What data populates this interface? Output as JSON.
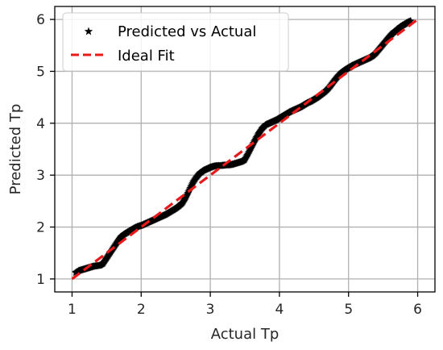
{
  "chart_data": {
    "type": "scatter",
    "xlabel": "Actual Tp",
    "ylabel": "Predicted Tp",
    "xlim": [
      0.75,
      6.25
    ],
    "ylim": [
      0.75,
      6.25
    ],
    "x_ticks": [
      1,
      2,
      3,
      4,
      5,
      6
    ],
    "y_ticks": [
      1,
      2,
      3,
      4,
      5,
      6
    ],
    "x_tick_labels": [
      "1",
      "2",
      "3",
      "4",
      "5",
      "6"
    ],
    "y_tick_labels": [
      "1",
      "2",
      "3",
      "4",
      "5",
      "6"
    ],
    "grid": true,
    "legend_position": "top-left",
    "series": [
      {
        "name": "Predicted vs Actual",
        "kind": "scatter",
        "marker": "star",
        "color": "#000000",
        "x": [
          1.05,
          1.1,
          1.15,
          1.2,
          1.25,
          1.3,
          1.35,
          1.4,
          1.45,
          1.5,
          1.55,
          1.6,
          1.65,
          1.7,
          1.75,
          1.8,
          1.85,
          1.9,
          1.95,
          2.0,
          2.05,
          2.1,
          2.15,
          2.2,
          2.25,
          2.3,
          2.35,
          2.4,
          2.45,
          2.5,
          2.55,
          2.6,
          2.65,
          2.7,
          2.75,
          2.8,
          2.85,
          2.9,
          2.95,
          3.0,
          3.05,
          3.1,
          3.15,
          3.2,
          3.25,
          3.3,
          3.35,
          3.4,
          3.45,
          3.5,
          3.55,
          3.6,
          3.65,
          3.7,
          3.75,
          3.8,
          3.85,
          3.9,
          3.95,
          4.0,
          4.05,
          4.1,
          4.15,
          4.2,
          4.25,
          4.3,
          4.35,
          4.4,
          4.45,
          4.5,
          4.55,
          4.6,
          4.65,
          4.7,
          4.75,
          4.8,
          4.85,
          4.9,
          4.95,
          5.0,
          5.05,
          5.1,
          5.15,
          5.2,
          5.25,
          5.3,
          5.35,
          5.4,
          5.45,
          5.5,
          5.55,
          5.6,
          5.65,
          5.7,
          5.75,
          5.8,
          5.85,
          5.9
        ],
        "y": [
          1.12,
          1.16,
          1.18,
          1.2,
          1.22,
          1.24,
          1.25,
          1.26,
          1.3,
          1.4,
          1.5,
          1.6,
          1.7,
          1.8,
          1.86,
          1.9,
          1.94,
          1.98,
          2.01,
          2.03,
          2.06,
          2.09,
          2.12,
          2.15,
          2.18,
          2.21,
          2.24,
          2.28,
          2.32,
          2.36,
          2.41,
          2.47,
          2.58,
          2.72,
          2.86,
          2.96,
          3.04,
          3.09,
          3.12,
          3.15,
          3.17,
          3.18,
          3.18,
          3.19,
          3.19,
          3.2,
          3.22,
          3.24,
          3.26,
          3.3,
          3.42,
          3.55,
          3.68,
          3.8,
          3.9,
          3.97,
          4.0,
          4.03,
          4.06,
          4.1,
          4.14,
          4.18,
          4.22,
          4.25,
          4.28,
          4.31,
          4.35,
          4.39,
          4.42,
          4.46,
          4.5,
          4.55,
          4.6,
          4.66,
          4.74,
          4.83,
          4.91,
          4.98,
          5.03,
          5.07,
          5.11,
          5.14,
          5.17,
          5.2,
          5.23,
          5.26,
          5.3,
          5.36,
          5.44,
          5.52,
          5.6,
          5.68,
          5.75,
          5.8,
          5.86,
          5.9,
          5.94,
          5.97
        ]
      },
      {
        "name": "Ideal Fit",
        "kind": "line",
        "dash": true,
        "color": "#e8191b",
        "x": [
          1,
          6
        ],
        "y": [
          1,
          6
        ]
      }
    ]
  }
}
